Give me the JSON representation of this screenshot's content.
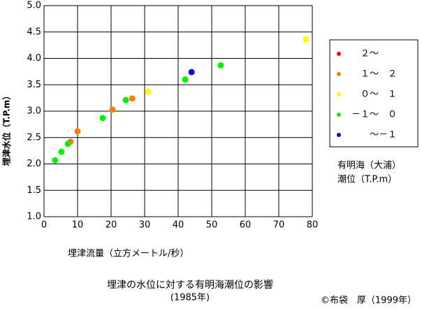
{
  "chart_data": {
    "type": "scatter",
    "title": "埋津の水位に対する有明海潮位の影響",
    "subtitle": "(1985年)",
    "x_label": "埋津流量（立方メートル/秒）",
    "y_label": "埋津水位（T.P.m）",
    "legend_title": [
      "有明海（大浦）",
      "潮位（T.P.m）"
    ],
    "credit": "©布袋　厚（1999年）",
    "xlim": [
      0,
      80
    ],
    "xticks": [
      0,
      10,
      20,
      30,
      40,
      50,
      60,
      70,
      80
    ],
    "ylim": [
      1,
      5
    ],
    "yticks": [
      {
        "value": 1,
        "label": "1.0"
      },
      1.5,
      {
        "value": 2,
        "label": "2.0"
      },
      2.5,
      {
        "value": 3,
        "label": "3.0"
      },
      3.5,
      {
        "value": 4,
        "label": "4.0"
      },
      4.5,
      {
        "value": 5,
        "label": "5.0"
      }
    ],
    "grid": true,
    "series": [
      {
        "name": "　２～",
        "color": "#ff0000",
        "x": [],
        "values": []
      },
      {
        "name": "　１～　２",
        "color": "#ff8000",
        "x": [
          7.9,
          10,
          20.4,
          26.3
        ],
        "values": [
          2.42,
          2.62,
          3.03,
          3.24
        ]
      },
      {
        "name": "　０～　１",
        "color": "#ffff00",
        "x": [
          31,
          78.1
        ],
        "values": [
          3.37,
          4.36
        ]
      },
      {
        "name": "－１～　０",
        "color": "#00ee00",
        "x": [
          3.3,
          5.2,
          7.1,
          17.5,
          24.4,
          42.1,
          52.7
        ],
        "values": [
          2.07,
          2.23,
          2.38,
          2.87,
          3.21,
          3.6,
          3.87
        ]
      },
      {
        "name": "　　～－１",
        "color": "#0000ff",
        "x": [
          44
        ],
        "values": [
          3.74
        ]
      }
    ]
  }
}
